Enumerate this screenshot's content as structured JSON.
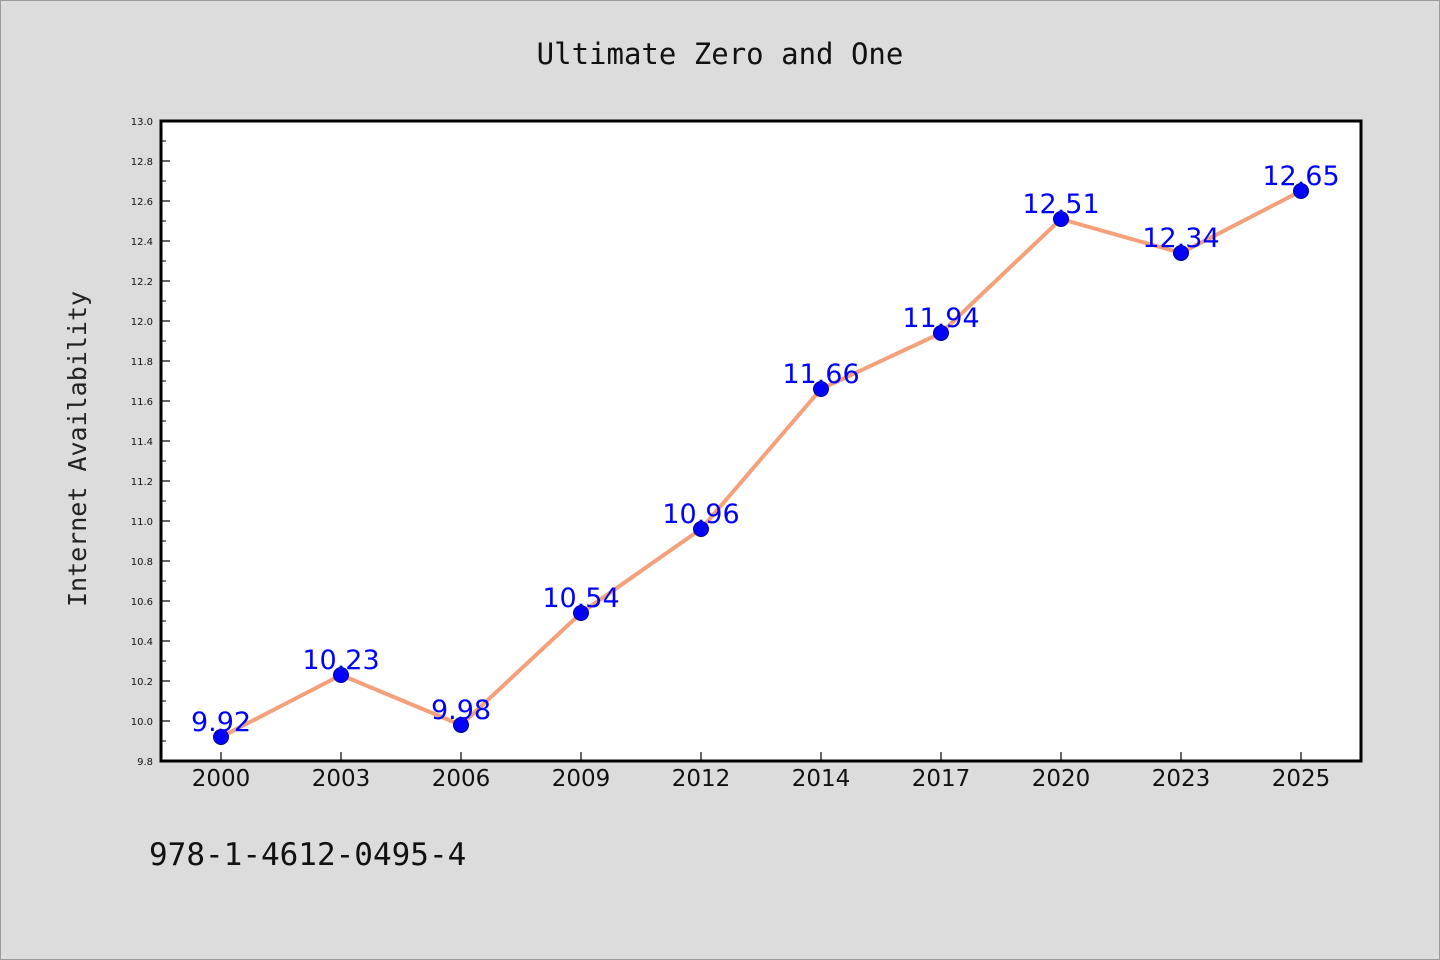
{
  "colors": {
    "background": "#dcdcdc",
    "plot_area": "#ffffff",
    "line": "#f4a07a",
    "marker": "#0000ff",
    "data_label": "#0000ff"
  },
  "footer_text": "978-1-4612-0495-4",
  "chart_data": {
    "type": "line",
    "title": "Ultimate Zero and One",
    "xlabel": "",
    "ylabel": "Internet Availability",
    "categories": [
      "2000",
      "2003",
      "2006",
      "2009",
      "2012",
      "2014",
      "2017",
      "2020",
      "2023",
      "2025"
    ],
    "series": [
      {
        "values": [
          9.92,
          10.23,
          9.98,
          10.54,
          10.96,
          11.66,
          11.94,
          12.51,
          12.34,
          12.65
        ],
        "labels": [
          "9.92",
          "10.23",
          "9.98",
          "10.54",
          "10.96",
          "11.66",
          "11.94",
          "12.51",
          "12.34",
          "12.65"
        ]
      }
    ],
    "ylim": [
      9.8,
      13.0
    ],
    "yticks": [
      "9.8",
      "10.0",
      "10.2",
      "10.4",
      "10.6",
      "10.8",
      "11.0",
      "11.2",
      "11.4",
      "11.6",
      "11.8",
      "12.0",
      "12.2",
      "12.4",
      "12.6",
      "12.8",
      "13.0"
    ],
    "grid": false,
    "legend": "none",
    "markers": "circle"
  }
}
